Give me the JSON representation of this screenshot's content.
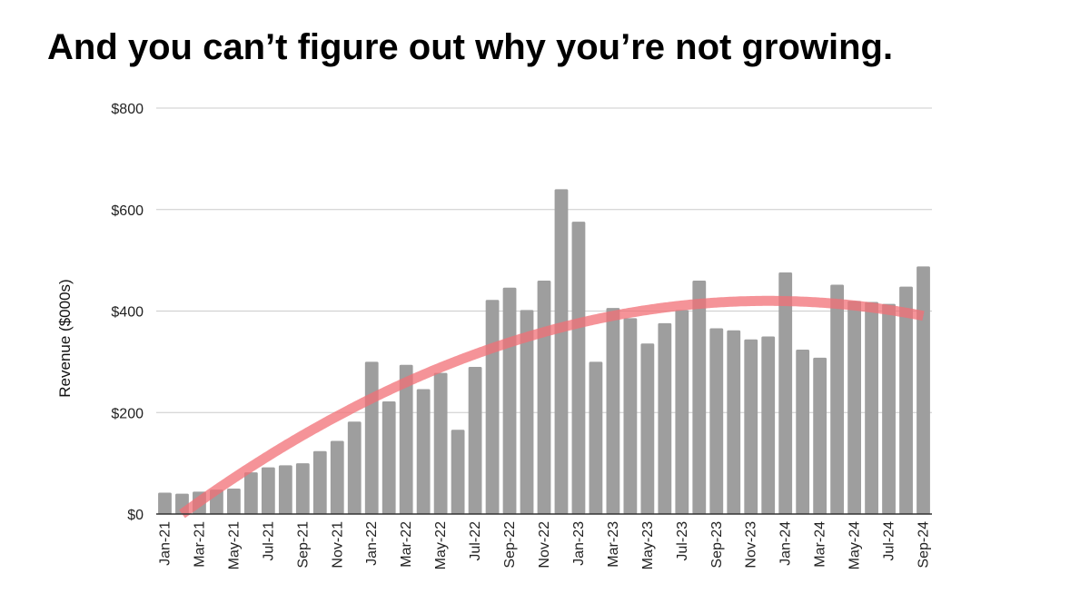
{
  "slide": {
    "title": "And you can’t figure out why you’re not growing."
  },
  "chart_data": {
    "type": "bar",
    "title": "",
    "xlabel": "",
    "ylabel": "Revenue ($000s)",
    "ylim": [
      0,
      800
    ],
    "y_ticks": [
      "$0",
      "$200",
      "$400",
      "$600",
      "$800"
    ],
    "y_tick_values": [
      0,
      200,
      400,
      600,
      800
    ],
    "grid": true,
    "legend": "none",
    "categories": [
      "Jan-21",
      "Feb-21",
      "Mar-21",
      "Apr-21",
      "May-21",
      "Jun-21",
      "Jul-21",
      "Aug-21",
      "Sep-21",
      "Oct-21",
      "Nov-21",
      "Dec-21",
      "Jan-22",
      "Feb-22",
      "Mar-22",
      "Apr-22",
      "May-22",
      "Jun-22",
      "Jul-22",
      "Aug-22",
      "Sep-22",
      "Oct-22",
      "Nov-22",
      "Dec-22",
      "Jan-23",
      "Feb-23",
      "Mar-23",
      "Apr-23",
      "May-23",
      "Jun-23",
      "Jul-23",
      "Aug-23",
      "Sep-23",
      "Oct-23",
      "Nov-23",
      "Dec-23",
      "Jan-24",
      "Feb-24",
      "Mar-24",
      "Apr-24",
      "May-24",
      "Jun-24",
      "Jul-24",
      "Aug-24",
      "Sep-24"
    ],
    "tick_labels": [
      "Jan-21",
      "Mar-21",
      "May-21",
      "Jul-21",
      "Sep-21",
      "Nov-21",
      "Jan-22",
      "Mar-22",
      "May-22",
      "Jul-22",
      "Sep-22",
      "Nov-22",
      "Jan-23",
      "Mar-23",
      "May-23",
      "Jul-23",
      "Sep-23",
      "Nov-23",
      "Jan-24",
      "Mar-24",
      "May-24",
      "Jul-24",
      "Sep-24"
    ],
    "series": [
      {
        "values": [
          42,
          40,
          44,
          48,
          50,
          82,
          92,
          96,
          100,
          124,
          144,
          182,
          300,
          222,
          294,
          246,
          278,
          166,
          290,
          422,
          446,
          402,
          460,
          640,
          576,
          300,
          406,
          386,
          336,
          376,
          402,
          460,
          366,
          362,
          344,
          350,
          476,
          324,
          308,
          452,
          420,
          418,
          414,
          448,
          488
        ]
      }
    ],
    "trendline": {
      "type": "polynomial",
      "x_at_zero": "Feb-21",
      "peak_value": 420,
      "peak_at": "Dec-23",
      "end_value": 400
    },
    "colors": {
      "bars": "#9e9e9e",
      "trendline": "#f16f75",
      "grid": "#cccccc",
      "axis": "#333333"
    }
  }
}
